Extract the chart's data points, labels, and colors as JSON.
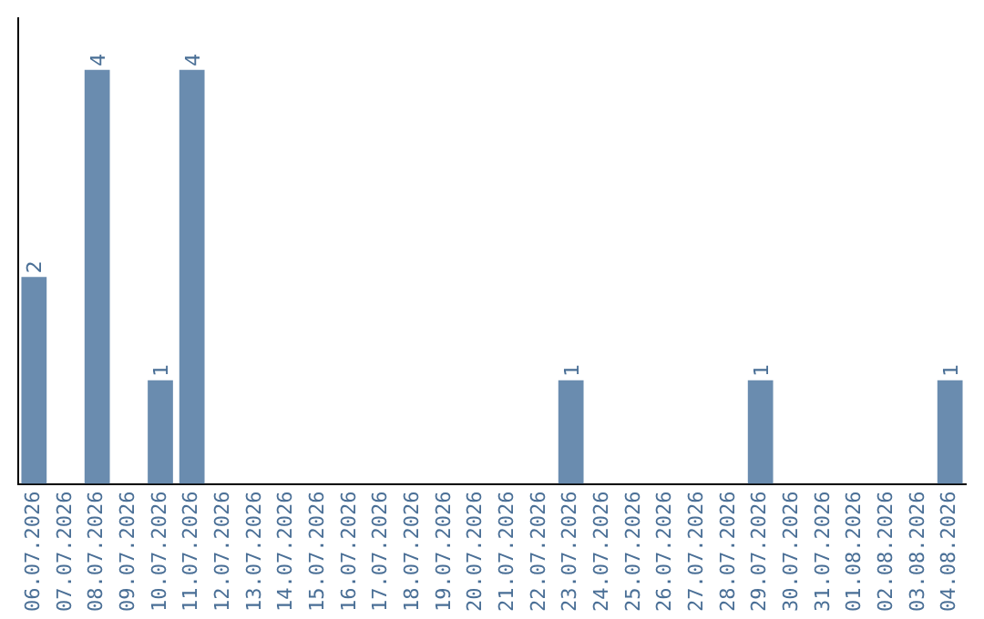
{
  "chart_data": {
    "type": "bar",
    "categories": [
      "06.07.2026",
      "07.07.2026",
      "08.07.2026",
      "09.07.2026",
      "10.07.2026",
      "11.07.2026",
      "12.07.2026",
      "13.07.2026",
      "14.07.2026",
      "15.07.2026",
      "16.07.2026",
      "17.07.2026",
      "18.07.2026",
      "19.07.2026",
      "20.07.2026",
      "21.07.2026",
      "22.07.2026",
      "23.07.2026",
      "24.07.2026",
      "25.07.2026",
      "26.07.2026",
      "27.07.2026",
      "28.07.2026",
      "29.07.2026",
      "30.07.2026",
      "31.07.2026",
      "01.08.2026",
      "02.08.2026",
      "03.08.2026",
      "04.08.2026"
    ],
    "values": [
      2,
      0,
      4,
      0,
      1,
      4,
      0,
      0,
      0,
      0,
      0,
      0,
      0,
      0,
      0,
      0,
      0,
      1,
      0,
      0,
      0,
      0,
      0,
      1,
      0,
      0,
      0,
      0,
      0,
      1
    ],
    "value_labels": [
      "2",
      null,
      "4",
      null,
      "1",
      "4",
      null,
      null,
      null,
      null,
      null,
      null,
      null,
      null,
      null,
      null,
      null,
      "1",
      null,
      null,
      null,
      null,
      null,
      "1",
      null,
      null,
      null,
      null,
      null,
      "1"
    ],
    "color": "#6a8caf",
    "tick_labels": "x",
    "grid": false,
    "legend": false
  }
}
